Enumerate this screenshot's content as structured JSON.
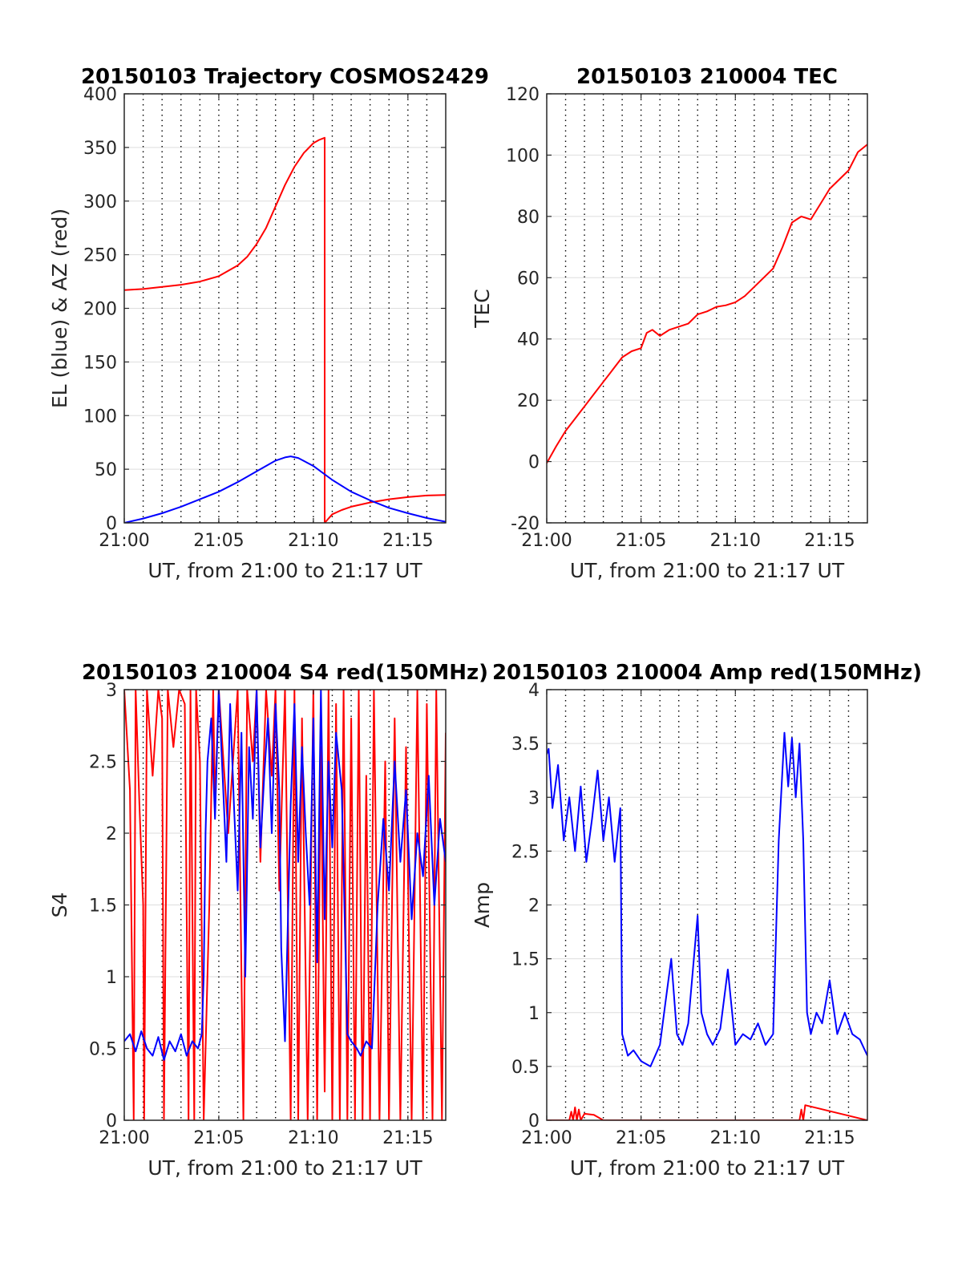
{
  "colors": {
    "red": "#ff0000",
    "blue": "#0000ff",
    "axis": "#262626",
    "grid": "#dedede",
    "vgrid": "#000000"
  },
  "chart_data": [
    {
      "id": "trajectory",
      "type": "line",
      "title": "20150103 Trajectory COSMOS2429",
      "xlabel": "UT, from 21:00 to 21:17 UT",
      "ylabel": "EL (blue) & AZ (red)",
      "xlim": [
        0,
        17
      ],
      "ylim": [
        0,
        400
      ],
      "xticks": [
        0,
        5,
        10,
        15
      ],
      "xticklabels": [
        "21:00",
        "21:05",
        "21:10",
        "21:15"
      ],
      "yticks": [
        0,
        50,
        100,
        150,
        200,
        250,
        300,
        350,
        400
      ],
      "yticklabels": [
        "0",
        "50",
        "100",
        "150",
        "200",
        "250",
        "300",
        "350",
        "400"
      ],
      "grid": true,
      "series": [
        {
          "name": "AZ",
          "color": "red",
          "x": [
            0,
            1,
            2,
            3,
            4,
            5,
            6,
            6.5,
            7,
            7.5,
            8,
            8.5,
            9,
            9.5,
            10,
            10.3,
            10.6,
            10.6,
            10.6,
            11,
            11.5,
            12,
            13,
            14,
            15,
            16,
            17
          ],
          "y": [
            217,
            218,
            220,
            222,
            225,
            230,
            240,
            248,
            260,
            275,
            295,
            315,
            332,
            345,
            354,
            357,
            359,
            180,
            0,
            8,
            12,
            15,
            19,
            22,
            24,
            25.5,
            26
          ]
        },
        {
          "name": "EL",
          "color": "blue",
          "x": [
            0,
            1,
            2,
            3,
            4,
            5,
            6,
            7,
            8,
            8.5,
            8.8,
            9.2,
            10,
            11,
            12,
            13,
            14,
            15,
            16,
            17
          ],
          "y": [
            0,
            4,
            9,
            15,
            22,
            29,
            38,
            48,
            58,
            61,
            62,
            60.5,
            53,
            40,
            29,
            21,
            14,
            9,
            4.5,
            1
          ]
        }
      ]
    },
    {
      "id": "tec",
      "type": "line",
      "title": "20150103 210004 TEC",
      "xlabel": "UT, from 21:00 to 21:17 UT",
      "ylabel": "TEC",
      "xlim": [
        0,
        17
      ],
      "ylim": [
        -20,
        120
      ],
      "xticks": [
        0,
        5,
        10,
        15
      ],
      "xticklabels": [
        "21:00",
        "21:05",
        "21:10",
        "21:15"
      ],
      "yticks": [
        -20,
        0,
        20,
        40,
        60,
        80,
        100,
        120
      ],
      "yticklabels": [
        "-20",
        "0",
        "20",
        "40",
        "60",
        "80",
        "100",
        "120"
      ],
      "grid": true,
      "series": [
        {
          "name": "TEC",
          "color": "red",
          "x": [
            0,
            0.5,
            1,
            1.5,
            2,
            2.5,
            3,
            3.5,
            4,
            4.5,
            5,
            5.3,
            5.6,
            6,
            6.5,
            7,
            7.5,
            8,
            8.5,
            9,
            9.5,
            10,
            10.5,
            11,
            11.5,
            12,
            12.5,
            13,
            13.5,
            14,
            14.5,
            15,
            15.5,
            16,
            16.5,
            17
          ],
          "y": [
            -0.5,
            5,
            10,
            14,
            18,
            22,
            26,
            30,
            34,
            36,
            37,
            42,
            43,
            41,
            43,
            44,
            45,
            48,
            49,
            50.5,
            51,
            52,
            54,
            57,
            60,
            63,
            70,
            78,
            80,
            79,
            84,
            89,
            92,
            95,
            101,
            103.5
          ]
        }
      ]
    },
    {
      "id": "s4",
      "type": "line",
      "title": "20150103 210004 S4 red(150MHz)",
      "xlabel": "UT, from 21:00 to 21:17 UT",
      "ylabel": "S4",
      "xlim": [
        0,
        17
      ],
      "ylim": [
        0,
        3
      ],
      "xticks": [
        0,
        5,
        10,
        15
      ],
      "xticklabels": [
        "21:00",
        "21:05",
        "21:10",
        "21:15"
      ],
      "yticks": [
        0,
        0.5,
        1,
        1.5,
        2,
        2.5,
        3
      ],
      "yticklabels": [
        "0",
        "0.5",
        "1",
        "1.5",
        "2",
        "2.5",
        "3"
      ],
      "grid": true,
      "series": [
        {
          "name": "red",
          "color": "red",
          "x": [
            0,
            0.3,
            0.5,
            0.6,
            0.8,
            1.0,
            1.05,
            1.2,
            1.5,
            1.8,
            2.0,
            2.1,
            2.3,
            2.6,
            2.9,
            3.2,
            3.4,
            3.5,
            3.7,
            3.8,
            4.0,
            4.2,
            4.5,
            4.7,
            4.8,
            5.0,
            5.5,
            6.0,
            6.3,
            6.5,
            6.8,
            7.0,
            7.2,
            7.5,
            7.8,
            8.0,
            8.2,
            8.5,
            8.8,
            9.0,
            9.2,
            9.4,
            9.7,
            10.0,
            10.2,
            10.4,
            10.6,
            10.8,
            11.0,
            11.2,
            11.4,
            11.6,
            11.8,
            12.0,
            12.2,
            12.4,
            12.6,
            12.8,
            13.0,
            13.2,
            13.5,
            13.8,
            14.0,
            14.3,
            14.6,
            14.9,
            15.2,
            15.5,
            15.8,
            16.0,
            16.3,
            16.5,
            16.8,
            17.0
          ],
          "y": [
            3,
            2.3,
            0,
            3,
            2.2,
            1.5,
            0,
            3,
            2.4,
            3,
            2.8,
            0,
            3,
            2.6,
            3,
            2.9,
            0,
            3,
            0,
            3,
            2.5,
            0,
            1.5,
            3,
            2.2,
            3,
            2.0,
            3,
            0,
            3,
            2.5,
            3,
            1.8,
            3,
            2.4,
            3,
            1.6,
            3,
            0,
            3,
            0,
            2.8,
            0,
            3,
            0,
            2.6,
            0.2,
            3,
            0,
            2.9,
            0,
            3,
            0,
            2.8,
            0,
            3,
            0,
            2.4,
            0,
            3,
            0,
            2.5,
            0,
            2.8,
            0,
            2.6,
            0,
            3,
            0,
            2.9,
            0,
            3,
            0,
            2.7
          ]
        },
        {
          "name": "blue",
          "color": "blue",
          "x": [
            0,
            0.3,
            0.6,
            0.9,
            1.2,
            1.5,
            1.8,
            2.1,
            2.4,
            2.7,
            3.0,
            3.3,
            3.6,
            3.9,
            4.1,
            4.2,
            4.3,
            4.4,
            4.6,
            4.8,
            5.0,
            5.2,
            5.4,
            5.6,
            5.8,
            6.0,
            6.2,
            6.4,
            6.6,
            6.8,
            7.0,
            7.2,
            7.4,
            7.6,
            7.8,
            8.0,
            8.2,
            8.3,
            8.5,
            8.8,
            9.0,
            9.2,
            9.4,
            9.6,
            9.8,
            10.0,
            10.2,
            10.4,
            10.6,
            10.8,
            11.0,
            11.2,
            11.5,
            11.8,
            12.0,
            12.3,
            12.5,
            12.8,
            13.1,
            13.4,
            13.7,
            14.0,
            14.3,
            14.6,
            14.9,
            15.2,
            15.5,
            15.8,
            16.1,
            16.4,
            16.7,
            17.0
          ],
          "y": [
            0.55,
            0.6,
            0.48,
            0.62,
            0.5,
            0.45,
            0.58,
            0.42,
            0.55,
            0.48,
            0.6,
            0.45,
            0.55,
            0.5,
            0.6,
            1.0,
            2.0,
            2.5,
            2.8,
            2.1,
            3.0,
            2.4,
            1.8,
            2.9,
            2.2,
            1.6,
            2.7,
            1.0,
            2.6,
            2.1,
            3.0,
            1.9,
            2.4,
            2.8,
            2.0,
            2.9,
            2.3,
            1.2,
            0.55,
            2.2,
            2.9,
            1.8,
            2.6,
            2.0,
            1.5,
            2.8,
            1.1,
            3.0,
            1.4,
            2.5,
            1.9,
            2.7,
            2.3,
            0.6,
            0.55,
            0.5,
            0.45,
            0.55,
            0.5,
            1.5,
            2.1,
            1.6,
            2.5,
            1.8,
            2.3,
            1.4,
            2.0,
            1.7,
            2.4,
            1.5,
            2.1,
            1.8
          ]
        }
      ]
    },
    {
      "id": "amp",
      "type": "line",
      "title": "20150103 210004 Amp red(150MHz)",
      "xlabel": "UT, from 21:00 to 21:17 UT",
      "ylabel": "Amp",
      "xlim": [
        0,
        17
      ],
      "ylim": [
        0,
        4
      ],
      "xticks": [
        0,
        5,
        10,
        15
      ],
      "xticklabels": [
        "21:00",
        "21:05",
        "21:10",
        "21:15"
      ],
      "yticks": [
        0,
        0.5,
        1,
        1.5,
        2,
        2.5,
        3,
        3.5,
        4
      ],
      "yticklabels": [
        "0",
        "0.5",
        "1",
        "1.5",
        "2",
        "2.5",
        "3",
        "3.5",
        "4"
      ],
      "grid": true,
      "series": [
        {
          "name": "red",
          "color": "red",
          "x": [
            0,
            1.2,
            1.3,
            1.4,
            1.5,
            1.6,
            1.7,
            1.8,
            2.0,
            2.5,
            3.0,
            13.4,
            13.5,
            13.6,
            13.7,
            17
          ],
          "y": [
            0,
            0,
            0.08,
            0,
            0.12,
            0,
            0.1,
            0,
            0.06,
            0.05,
            0,
            0,
            0.1,
            0,
            0.14,
            0
          ]
        },
        {
          "name": "blue",
          "color": "blue",
          "x": [
            0.0,
            0.1,
            0.3,
            0.6,
            0.9,
            1.2,
            1.5,
            1.8,
            2.1,
            2.4,
            2.7,
            3.0,
            3.3,
            3.6,
            3.9,
            4.0,
            4.3,
            4.6,
            5.0,
            5.5,
            6.0,
            6.3,
            6.6,
            6.9,
            7.2,
            7.5,
            8.0,
            8.2,
            8.5,
            8.8,
            9.2,
            9.6,
            10.0,
            10.4,
            10.8,
            11.2,
            11.6,
            12.0,
            12.3,
            12.6,
            12.8,
            13.0,
            13.2,
            13.4,
            13.6,
            13.8,
            14.0,
            14.3,
            14.6,
            15.0,
            15.4,
            15.8,
            16.2,
            16.6,
            17.0
          ],
          "y": [
            3.4,
            3.45,
            2.9,
            3.3,
            2.6,
            3.0,
            2.5,
            3.1,
            2.4,
            2.8,
            3.25,
            2.6,
            3.0,
            2.4,
            2.9,
            0.8,
            0.6,
            0.65,
            0.55,
            0.5,
            0.7,
            1.1,
            1.5,
            0.8,
            0.7,
            0.9,
            1.9,
            1.0,
            0.8,
            0.7,
            0.85,
            1.4,
            0.7,
            0.8,
            0.75,
            0.9,
            0.7,
            0.8,
            2.6,
            3.6,
            3.1,
            3.55,
            3.0,
            3.5,
            2.6,
            1.0,
            0.8,
            1.0,
            0.9,
            1.3,
            0.8,
            1.0,
            0.8,
            0.75,
            0.6
          ]
        }
      ]
    }
  ]
}
